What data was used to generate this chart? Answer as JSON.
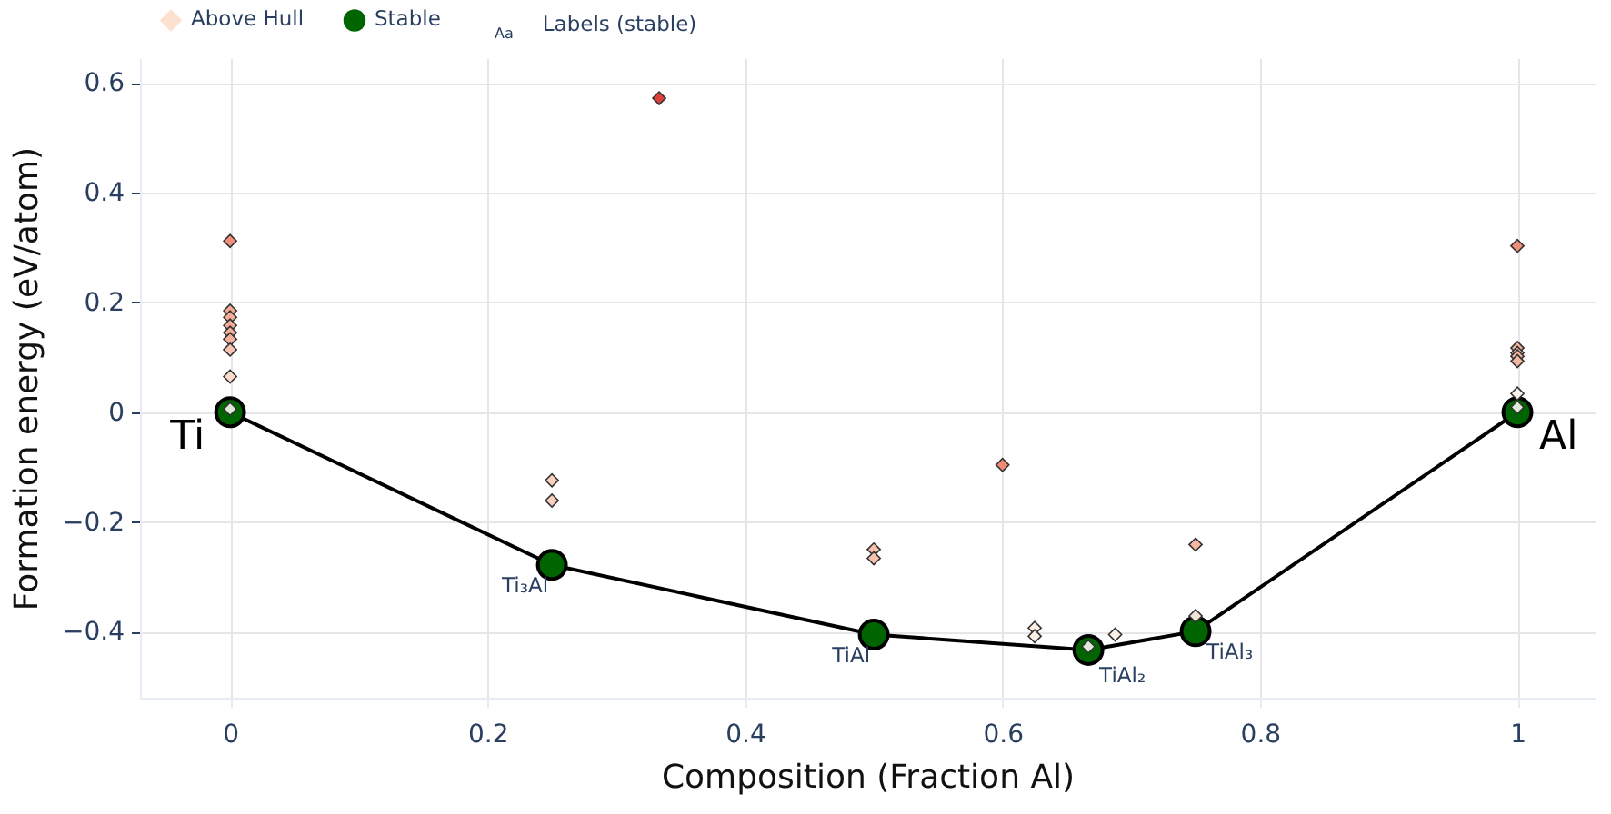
{
  "chart_data": {
    "type": "scatter",
    "xlabel": "Composition (Fraction Al)",
    "ylabel": "Formation energy (eV/atom)",
    "xlim": [
      -0.07,
      1.06
    ],
    "ylim": [
      -0.52,
      0.645
    ],
    "xticks": [
      0,
      0.2,
      0.4,
      0.6,
      0.8,
      1
    ],
    "yticks": [
      -0.4,
      -0.2,
      0,
      0.2,
      0.4,
      0.6
    ],
    "grid": true,
    "legend": "top left",
    "series": [
      {
        "name": "Above Hull",
        "type": "scatter",
        "marker": "diamond",
        "color": "#fde0d0",
        "x": [
          0,
          0,
          0,
          0,
          0,
          0,
          0,
          0,
          0,
          0.25,
          0.25,
          0.3333,
          0.5,
          0.5,
          0.6,
          0.625,
          0.625,
          0.6667,
          0.6875,
          0.75,
          0.75,
          1,
          1,
          1,
          1,
          1,
          1,
          1
        ],
        "values": [
          0.312,
          0.185,
          0.173,
          0.158,
          0.145,
          0.133,
          0.114,
          0.065,
          0.006,
          -0.124,
          -0.161,
          0.572,
          -0.25,
          -0.266,
          -0.096,
          -0.393,
          -0.408,
          -0.427,
          -0.405,
          -0.241,
          -0.371,
          0.303,
          0.117,
          0.108,
          0.102,
          0.093,
          0.034,
          0.009
        ],
        "colors": [
          "#f08f7b",
          "#f4ab97",
          "#f4ab97",
          "#f4ab97",
          "#f5ae9a",
          "#f5b19d",
          "#f8c4b1",
          "#fcdccd",
          "#dfe9d8",
          "#fbd0bf",
          "#fbd0bf",
          "#d9413a",
          "#f8c2ae",
          "#f8c2ae",
          "#f08a74",
          "#fdf0e6",
          "#fdf0e6",
          "#dfe9d8",
          "#fdf0e6",
          "#f7b9a4",
          "#f0e6d8",
          "#f0907a",
          "#f4b6a0",
          "#f4b6a0",
          "#f4b6a0",
          "#f4b6a0",
          "#fdf3ea",
          "#dfe9d8"
        ]
      },
      {
        "name": "Stable",
        "type": "scatter",
        "marker": "circle",
        "color": "#006400",
        "x": [
          0,
          0.25,
          0.5,
          0.6667,
          0.75,
          1
        ],
        "values": [
          0,
          -0.278,
          -0.405,
          -0.433,
          -0.399,
          0
        ]
      },
      {
        "type": "line",
        "marker": "none",
        "color": "#000000",
        "x": [
          0,
          0.25,
          0.5,
          0.6667,
          0.75,
          1
        ],
        "values": [
          0,
          -0.278,
          -0.405,
          -0.433,
          -0.399,
          0
        ]
      }
    ],
    "annotations": [
      {
        "text": "Ti",
        "x": 0,
        "y": 0
      },
      {
        "text": "Ti₃Al",
        "x": 0.25,
        "y": -0.278
      },
      {
        "text": "TiAl",
        "x": 0.5,
        "y": -0.405
      },
      {
        "text": "TiAl₂",
        "x": 0.6667,
        "y": -0.433
      },
      {
        "text": "TiAl₃",
        "x": 0.75,
        "y": -0.399
      },
      {
        "text": "Al",
        "x": 1,
        "y": 0
      },
      "Aa",
      "Labels (stable)"
    ]
  }
}
